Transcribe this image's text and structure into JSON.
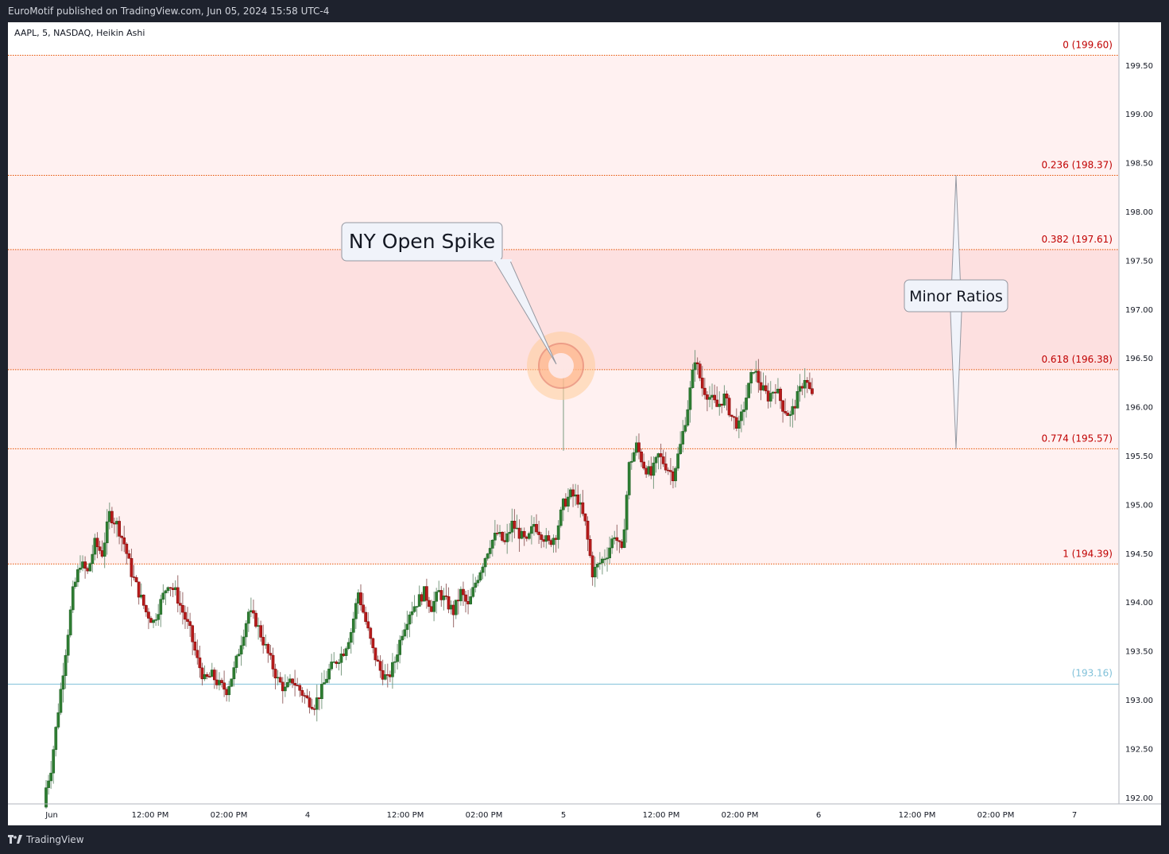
{
  "header": {
    "published": "EuroMotif published on TradingView.com, Jun 05, 2024 15:58 UTC-4"
  },
  "symbol": "AAPL, 5, NASDAQ, Heikin Ashi",
  "footer": {
    "brand": "TradingView"
  },
  "colors": {
    "up_candle": "#26a69a",
    "up_candle_body": "#2e7d32",
    "down_candle": "#b71c1c",
    "fib_line": "#e65100",
    "fib_label": "#c00000",
    "fill_light": "#fff1f1",
    "fill_dark": "#fde0e0",
    "last_price_line": "#81c1d9"
  },
  "chart_data": {
    "type": "candlestick",
    "title": "",
    "ylim": [
      191.9,
      200.2
    ],
    "y_ticks": [
      "199.50",
      "199.00",
      "198.50",
      "198.00",
      "197.50",
      "197.00",
      "196.50",
      "196.00",
      "195.50",
      "195.00",
      "194.50",
      "194.00",
      "193.50",
      "193.00",
      "192.50",
      "192.00"
    ],
    "x_ticks": [
      "Jun",
      "12:00 PM",
      "02:00 PM",
      "4",
      "12:00 PM",
      "02:00 PM",
      "5",
      "12:00 PM",
      "02:00 PM",
      "6",
      "12:00 PM",
      "02:00 PM",
      "7"
    ],
    "fib_levels": [
      {
        "ratio": "0",
        "price": 199.6,
        "label": "0 (199.60)"
      },
      {
        "ratio": "0.236",
        "price": 198.37,
        "label": "0.236 (198.37)"
      },
      {
        "ratio": "0.382",
        "price": 197.61,
        "label": "0.382 (197.61)"
      },
      {
        "ratio": "0.618",
        "price": 196.38,
        "label": "0.618 (196.38)"
      },
      {
        "ratio": "0.774",
        "price": 195.57,
        "label": "0.774 (195.57)"
      },
      {
        "ratio": "1",
        "price": 194.39,
        "label": "1 (194.39)"
      }
    ],
    "price_line": {
      "price": 193.16,
      "label": "(193.16)"
    },
    "annotations": [
      {
        "text": "NY Open Spike",
        "price": 196.42
      },
      {
        "text": "Minor Ratios",
        "price_top": 198.37,
        "price_bottom": 195.57
      }
    ],
    "close_path": [
      192.0,
      192.3,
      192.9,
      193.5,
      194.1,
      194.4,
      194.3,
      194.6,
      194.5,
      194.9,
      194.8,
      194.6,
      194.3,
      194.1,
      193.9,
      193.8,
      194.0,
      194.2,
      194.1,
      193.9,
      193.7,
      193.4,
      193.2,
      193.25,
      193.15,
      193.1,
      193.3,
      193.6,
      193.9,
      193.8,
      193.6,
      193.4,
      193.2,
      193.1,
      193.2,
      193.1,
      193.0,
      192.95,
      193.1,
      193.3,
      193.4,
      193.5,
      193.7,
      194.1,
      193.8,
      193.5,
      193.3,
      193.2,
      193.4,
      193.7,
      193.9,
      194.0,
      194.1,
      193.95,
      194.1,
      194.0,
      193.9,
      194.1,
      193.95,
      194.2,
      194.4,
      194.6,
      194.7,
      194.6,
      194.8,
      194.7,
      194.6,
      194.8,
      194.7,
      194.6,
      194.7,
      195.0,
      195.1,
      195.05,
      194.8,
      194.3,
      194.4,
      194.5,
      194.7,
      194.5,
      195.4,
      195.6,
      195.4,
      195.3,
      195.5,
      195.4,
      195.3,
      195.6,
      196.0,
      196.5,
      196.2,
      196.1,
      196.0,
      196.1,
      195.9,
      195.8,
      196.1,
      196.4,
      196.2,
      196.1,
      196.2,
      196.0,
      195.9,
      196.1,
      196.3,
      196.1
    ]
  }
}
